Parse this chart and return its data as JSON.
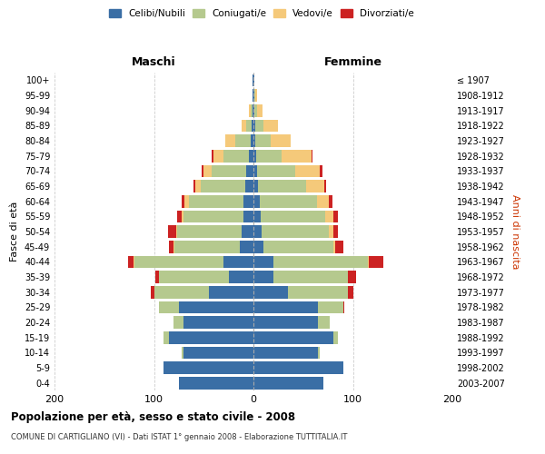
{
  "age_groups": [
    "0-4",
    "5-9",
    "10-14",
    "15-19",
    "20-24",
    "25-29",
    "30-34",
    "35-39",
    "40-44",
    "45-49",
    "50-54",
    "55-59",
    "60-64",
    "65-69",
    "70-74",
    "75-79",
    "80-84",
    "85-89",
    "90-94",
    "95-99",
    "100+"
  ],
  "birth_years": [
    "2003-2007",
    "1998-2002",
    "1993-1997",
    "1988-1992",
    "1983-1987",
    "1978-1982",
    "1973-1977",
    "1968-1972",
    "1963-1967",
    "1958-1962",
    "1953-1957",
    "1948-1952",
    "1943-1947",
    "1938-1942",
    "1933-1937",
    "1928-1932",
    "1923-1927",
    "1918-1922",
    "1913-1917",
    "1908-1912",
    "≤ 1907"
  ],
  "colors": {
    "celibi": "#3a6ea5",
    "coniugati": "#b5c98e",
    "vedovi": "#f5c97a",
    "divorziati": "#cc2222"
  },
  "males": {
    "celibi": [
      75,
      90,
      70,
      85,
      70,
      75,
      45,
      25,
      30,
      14,
      12,
      10,
      10,
      8,
      7,
      5,
      3,
      2,
      1,
      1,
      1
    ],
    "coniugati": [
      0,
      0,
      2,
      5,
      10,
      20,
      55,
      70,
      90,
      65,
      65,
      60,
      55,
      45,
      35,
      25,
      15,
      5,
      2,
      0,
      0
    ],
    "vedovi": [
      0,
      0,
      0,
      0,
      0,
      0,
      0,
      0,
      1,
      1,
      1,
      2,
      4,
      5,
      8,
      10,
      10,
      5,
      2,
      0,
      0
    ],
    "divorziati": [
      0,
      0,
      0,
      0,
      0,
      0,
      3,
      4,
      5,
      5,
      8,
      5,
      3,
      2,
      2,
      2,
      0,
      0,
      0,
      0,
      0
    ]
  },
  "females": {
    "nubili": [
      70,
      90,
      65,
      80,
      65,
      65,
      35,
      20,
      20,
      10,
      8,
      7,
      6,
      5,
      4,
      3,
      2,
      2,
      1,
      1,
      1
    ],
    "coniugate": [
      0,
      0,
      2,
      5,
      12,
      25,
      60,
      75,
      95,
      70,
      68,
      65,
      58,
      48,
      38,
      25,
      15,
      8,
      3,
      1,
      0
    ],
    "vedove": [
      0,
      0,
      0,
      0,
      0,
      0,
      0,
      0,
      1,
      2,
      4,
      8,
      12,
      18,
      25,
      30,
      20,
      15,
      5,
      2,
      0
    ],
    "divorziate": [
      0,
      0,
      0,
      0,
      0,
      1,
      5,
      8,
      15,
      8,
      5,
      5,
      3,
      2,
      2,
      1,
      0,
      0,
      0,
      0,
      0
    ]
  },
  "xlim": 200,
  "title": "Popolazione per età, sesso e stato civile - 2008",
  "subtitle": "COMUNE DI CARTIGLIANO (VI) - Dati ISTAT 1° gennaio 2008 - Elaborazione TUTTITALIA.IT",
  "xlabel_left": "Maschi",
  "xlabel_right": "Femmine",
  "ylabel": "Fasce di età",
  "ylabel_right": "Anni di nascita",
  "legend_labels": [
    "Celibi/Nubili",
    "Coniugati/e",
    "Vedovi/e",
    "Divorziati/e"
  ],
  "bg_color": "#ffffff",
  "grid_color": "#cccccc",
  "bar_height": 0.82
}
